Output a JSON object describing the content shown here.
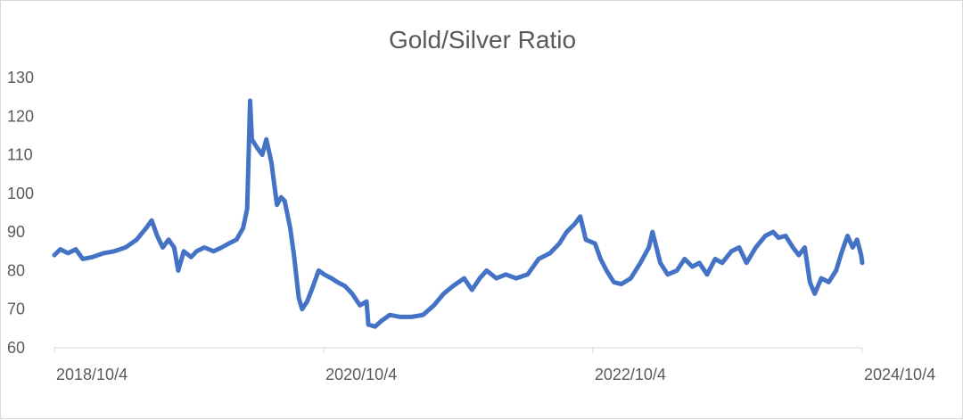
{
  "chart_data": {
    "type": "line",
    "title": "Gold/Silver Ratio",
    "xlabel": "",
    "ylabel": "",
    "ylim": [
      60,
      130
    ],
    "yticks": [
      60,
      70,
      80,
      90,
      100,
      110,
      120,
      130
    ],
    "xlim": [
      "2018-10-04",
      "2024-10-04"
    ],
    "xtick_labels": [
      "2018/10/4",
      "2020/10/4",
      "2022/10/4",
      "2024/10/4"
    ],
    "xtick_dates": [
      "2018-10-04",
      "2020-10-04",
      "2022-10-04",
      "2024-10-04"
    ],
    "grid": false,
    "legend": "none",
    "series": [
      {
        "color": "#4472c4",
        "points": [
          [
            "2018-10-04",
            84
          ],
          [
            "2018-10-20",
            85.5
          ],
          [
            "2018-11-10",
            84.5
          ],
          [
            "2018-12-01",
            85.5
          ],
          [
            "2018-12-20",
            83
          ],
          [
            "2019-01-15",
            83.5
          ],
          [
            "2019-02-15",
            84.5
          ],
          [
            "2019-03-15",
            85
          ],
          [
            "2019-04-15",
            86
          ],
          [
            "2019-05-15",
            88
          ],
          [
            "2019-06-10",
            91
          ],
          [
            "2019-06-25",
            93
          ],
          [
            "2019-07-10",
            89
          ],
          [
            "2019-07-25",
            86
          ],
          [
            "2019-08-10",
            88
          ],
          [
            "2019-08-25",
            86
          ],
          [
            "2019-09-05",
            80
          ],
          [
            "2019-09-20",
            85
          ],
          [
            "2019-10-10",
            83.5
          ],
          [
            "2019-10-25",
            85
          ],
          [
            "2019-11-15",
            86
          ],
          [
            "2019-12-10",
            85
          ],
          [
            "2020-01-01",
            86
          ],
          [
            "2020-01-20",
            87
          ],
          [
            "2020-02-10",
            88
          ],
          [
            "2020-02-28",
            91
          ],
          [
            "2020-03-10",
            96
          ],
          [
            "2020-03-18",
            124
          ],
          [
            "2020-03-23",
            114
          ],
          [
            "2020-04-05",
            112
          ],
          [
            "2020-04-20",
            110
          ],
          [
            "2020-05-01",
            114
          ],
          [
            "2020-05-15",
            108
          ],
          [
            "2020-05-30",
            97
          ],
          [
            "2020-06-10",
            99
          ],
          [
            "2020-06-20",
            98
          ],
          [
            "2020-07-05",
            91
          ],
          [
            "2020-07-15",
            84
          ],
          [
            "2020-07-28",
            73
          ],
          [
            "2020-08-06",
            70
          ],
          [
            "2020-08-20",
            72
          ],
          [
            "2020-09-05",
            76
          ],
          [
            "2020-09-20",
            80
          ],
          [
            "2020-10-05",
            79
          ],
          [
            "2020-10-25",
            78
          ],
          [
            "2020-11-10",
            77
          ],
          [
            "2020-11-30",
            76
          ],
          [
            "2020-12-20",
            74
          ],
          [
            "2021-01-10",
            71
          ],
          [
            "2021-01-28",
            72
          ],
          [
            "2021-02-02",
            66
          ],
          [
            "2021-02-20",
            65.5
          ],
          [
            "2021-03-10",
            67
          ],
          [
            "2021-04-01",
            68.5
          ],
          [
            "2021-04-30",
            68
          ],
          [
            "2021-05-30",
            68
          ],
          [
            "2021-06-30",
            68.5
          ],
          [
            "2021-07-30",
            71
          ],
          [
            "2021-08-25",
            74
          ],
          [
            "2021-09-20",
            76
          ],
          [
            "2021-10-20",
            78
          ],
          [
            "2021-11-10",
            75
          ],
          [
            "2021-12-01",
            78
          ],
          [
            "2021-12-20",
            80
          ],
          [
            "2022-01-15",
            78
          ],
          [
            "2022-02-10",
            79
          ],
          [
            "2022-03-10",
            78
          ],
          [
            "2022-04-10",
            79
          ],
          [
            "2022-05-10",
            83
          ],
          [
            "2022-06-10",
            84.5
          ],
          [
            "2022-07-05",
            87
          ],
          [
            "2022-07-25",
            90
          ],
          [
            "2022-08-15",
            92
          ],
          [
            "2022-08-31",
            94
          ],
          [
            "2022-09-15",
            88
          ],
          [
            "2022-10-10",
            87
          ],
          [
            "2022-10-25",
            83
          ],
          [
            "2022-11-10",
            80
          ],
          [
            "2022-11-30",
            77
          ],
          [
            "2022-12-20",
            76.5
          ],
          [
            "2023-01-15",
            78
          ],
          [
            "2023-02-10",
            82
          ],
          [
            "2023-03-05",
            86
          ],
          [
            "2023-03-15",
            90
          ],
          [
            "2023-04-05",
            82
          ],
          [
            "2023-04-25",
            79
          ],
          [
            "2023-05-20",
            80
          ],
          [
            "2023-06-10",
            83
          ],
          [
            "2023-07-01",
            81
          ],
          [
            "2023-07-20",
            82
          ],
          [
            "2023-08-10",
            79
          ],
          [
            "2023-09-01",
            83
          ],
          [
            "2023-09-20",
            82
          ],
          [
            "2023-10-15",
            85
          ],
          [
            "2023-11-05",
            86
          ],
          [
            "2023-11-25",
            82
          ],
          [
            "2023-12-20",
            86
          ],
          [
            "2024-01-15",
            89
          ],
          [
            "2024-02-05",
            90
          ],
          [
            "2024-02-20",
            88.5
          ],
          [
            "2024-03-10",
            89
          ],
          [
            "2024-03-30",
            86
          ],
          [
            "2024-04-15",
            84
          ],
          [
            "2024-05-01",
            86
          ],
          [
            "2024-05-15",
            77
          ],
          [
            "2024-05-28",
            74
          ],
          [
            "2024-06-15",
            78
          ],
          [
            "2024-07-05",
            77
          ],
          [
            "2024-07-25",
            80
          ],
          [
            "2024-08-10",
            85
          ],
          [
            "2024-08-25",
            89
          ],
          [
            "2024-09-08",
            86
          ],
          [
            "2024-09-20",
            88
          ],
          [
            "2024-10-01",
            84
          ],
          [
            "2024-10-04",
            82
          ]
        ]
      }
    ]
  }
}
